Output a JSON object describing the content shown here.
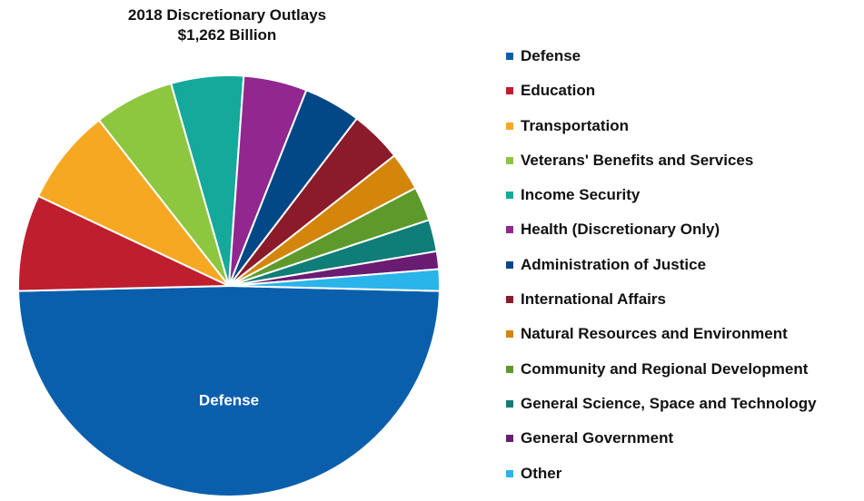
{
  "chart_data": {
    "type": "pie",
    "title": "2018 Discretionary Outlays",
    "subtitle": "$1,262 Billion",
    "legend_position": "right",
    "slices": [
      {
        "name": "Defense",
        "value": 50.5,
        "color": "#0a5fad"
      },
      {
        "name": "Education",
        "value": 7.6,
        "color": "#bf1e2e"
      },
      {
        "name": "Transportation",
        "value": 7.6,
        "color": "#f7a823"
      },
      {
        "name": "Veterans' Benefits and Services",
        "value": 6.3,
        "color": "#8dc63f"
      },
      {
        "name": "Income Security",
        "value": 5.7,
        "color": "#15a99c"
      },
      {
        "name": "Health (Discretionary Only)",
        "value": 5.0,
        "color": "#92278f"
      },
      {
        "name": "Administration of Justice",
        "value": 4.5,
        "color": "#024887"
      },
      {
        "name": "International Affairs",
        "value": 4.1,
        "color": "#8b1a2b"
      },
      {
        "name": "Natural Resources and Environment",
        "value": 3.0,
        "color": "#d4860b"
      },
      {
        "name": "Community and Regional Development",
        "value": 2.7,
        "color": "#5e9a2b"
      },
      {
        "name": "General Science, Space and Technology",
        "value": 2.5,
        "color": "#0f7d78"
      },
      {
        "name": "General Government",
        "value": 1.4,
        "color": "#6a1b72"
      },
      {
        "name": "Other",
        "value": 1.7,
        "color": "#29b4ea"
      }
    ],
    "slice_labels": [
      {
        "slice": "Defense",
        "text": "Defense",
        "color": "#ffffff"
      }
    ]
  }
}
